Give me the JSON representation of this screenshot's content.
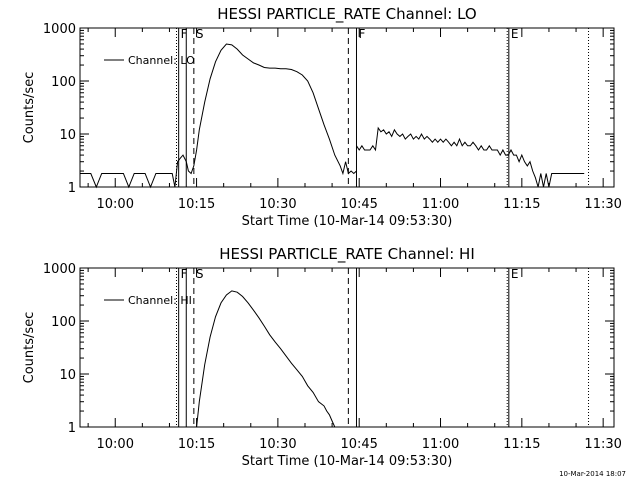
{
  "footer_timestamp": "10-Mar-2014 18:07",
  "chart_data": [
    {
      "type": "line",
      "title": "HESSI PARTICLE_RATE Channel: LO",
      "xlabel": "Start Time (10-Mar-14 09:53:30)",
      "ylabel": "Counts/sec",
      "x_unit": "minutes after 09:53:30",
      "xlim": [
        0,
        98.5
      ],
      "ylim": [
        1,
        1000
      ],
      "yscale": "log",
      "grid": false,
      "xticks": [
        {
          "x": 6.5,
          "label": "10:00"
        },
        {
          "x": 21.5,
          "label": "10:15"
        },
        {
          "x": 36.5,
          "label": "10:30"
        },
        {
          "x": 51.5,
          "label": "10:45"
        },
        {
          "x": 66.5,
          "label": "11:00"
        },
        {
          "x": 81.5,
          "label": "11:15"
        },
        {
          "x": 96.5,
          "label": "11:30"
        }
      ],
      "yticks": [
        {
          "y": 1,
          "label": "1"
        },
        {
          "y": 10,
          "label": "10"
        },
        {
          "y": 100,
          "label": "100"
        },
        {
          "y": 1000,
          "label": "1000"
        }
      ],
      "legend": {
        "label": "Channel: LO",
        "position": "top-left"
      },
      "markers": [
        {
          "x": 17.8,
          "style": "dotted",
          "label": ""
        },
        {
          "x": 18.2,
          "style": "solid",
          "label": "F"
        },
        {
          "x": 19.6,
          "style": "solid",
          "label": ""
        },
        {
          "x": 21.0,
          "style": "dashed",
          "label": "S"
        },
        {
          "x": 49.5,
          "style": "dashed",
          "label": ""
        },
        {
          "x": 51.0,
          "style": "solid",
          "label": "F"
        },
        {
          "x": 78.8,
          "style": "dotted",
          "label": ""
        },
        {
          "x": 79.1,
          "style": "solid",
          "label": "E"
        },
        {
          "x": 93.8,
          "style": "dotted",
          "label": ""
        }
      ],
      "series": [
        {
          "name": "Channel: LO",
          "x": [
            0,
            1,
            2,
            3,
            4,
            5,
            6,
            7,
            8,
            9,
            10,
            11,
            12,
            13,
            14,
            15,
            16,
            17,
            17.5,
            18,
            18.5,
            19,
            19.6,
            20,
            20.5,
            21,
            21.5,
            22,
            23,
            24,
            25,
            26,
            27,
            28,
            29,
            30,
            31,
            32,
            33,
            34,
            35,
            36,
            37,
            38,
            39,
            40,
            41,
            42,
            43,
            44,
            45,
            46,
            47,
            48,
            48.5,
            49,
            49.5,
            50,
            50.5,
            51
          ],
          "y": [
            1.8,
            1.8,
            1.8,
            1.0,
            1.8,
            1.8,
            1.8,
            1.8,
            1.8,
            1.0,
            1.8,
            1.8,
            1.8,
            1.0,
            1.8,
            1.8,
            1.8,
            1.8,
            1.0,
            3.0,
            3.5,
            4.0,
            3.0,
            2.0,
            1.8,
            2.5,
            5,
            12,
            40,
            110,
            230,
            380,
            500,
            480,
            400,
            310,
            260,
            220,
            200,
            180,
            175,
            175,
            170,
            170,
            165,
            150,
            130,
            100,
            60,
            30,
            15,
            8,
            4,
            2.5,
            1.8,
            3.0,
            1.8,
            2.0,
            1.8,
            2.0
          ]
        },
        {
          "name": "",
          "x": [
            51,
            51.5,
            52,
            52.5,
            53,
            53.5,
            54,
            54.5,
            55,
            55.5,
            56,
            56.5,
            57,
            57.5,
            58,
            58.5,
            59,
            59.5,
            60,
            60.5,
            61,
            61.5,
            62,
            62.5,
            63,
            63.5,
            64,
            64.5,
            65,
            65.5,
            66,
            66.5,
            67,
            67.5,
            68,
            68.5,
            69,
            69.5,
            70,
            70.5,
            71,
            71.5,
            72,
            72.5,
            73,
            73.5,
            74,
            74.5,
            75,
            75.5,
            76,
            76.5,
            77,
            77.5,
            78,
            78.5,
            79,
            79.5,
            80,
            80.5,
            81,
            81.5,
            82,
            82.5,
            83,
            83.5,
            84,
            84.5,
            85,
            85.5,
            86,
            86.5,
            87,
            87.5,
            88,
            88.5,
            89,
            89.5,
            90,
            90.5,
            91,
            91.5,
            92,
            92.5,
            93
          ],
          "y": [
            6,
            5,
            6,
            5,
            5,
            5,
            6,
            5,
            13,
            11,
            12,
            10,
            11,
            9,
            12,
            10,
            9,
            10,
            8,
            9,
            10,
            8,
            9,
            8,
            10,
            8,
            9,
            8,
            7,
            8,
            7,
            8,
            7,
            8,
            7,
            6,
            7,
            6,
            8,
            6,
            7,
            6,
            6,
            7,
            6,
            5,
            6,
            5,
            5,
            6,
            5,
            5,
            5,
            4,
            5,
            4,
            4,
            5,
            4,
            4,
            3,
            4,
            3,
            2.5,
            3,
            2,
            1.5,
            1,
            1.8,
            1,
            1.8,
            1,
            1.8,
            1.8,
            1.8,
            1.8,
            1.8,
            1.8,
            1.8,
            1.8,
            1.8,
            1.8,
            1.8,
            1.8,
            1.8
          ]
        }
      ]
    },
    {
      "type": "line",
      "title": "HESSI PARTICLE_RATE Channel: HI",
      "xlabel": "Start Time (10-Mar-14 09:53:30)",
      "ylabel": "Counts/sec",
      "x_unit": "minutes after 09:53:30",
      "xlim": [
        0,
        98.5
      ],
      "ylim": [
        1,
        1000
      ],
      "yscale": "log",
      "grid": false,
      "xticks": [
        {
          "x": 6.5,
          "label": "10:00"
        },
        {
          "x": 21.5,
          "label": "10:15"
        },
        {
          "x": 36.5,
          "label": "10:30"
        },
        {
          "x": 51.5,
          "label": "10:45"
        },
        {
          "x": 66.5,
          "label": "11:00"
        },
        {
          "x": 81.5,
          "label": "11:15"
        },
        {
          "x": 96.5,
          "label": "11:30"
        }
      ],
      "yticks": [
        {
          "y": 1,
          "label": "1"
        },
        {
          "y": 10,
          "label": "10"
        },
        {
          "y": 100,
          "label": "100"
        },
        {
          "y": 1000,
          "label": "1000"
        }
      ],
      "legend": {
        "label": "Channel: HI",
        "position": "top-left"
      },
      "markers": [
        {
          "x": 17.8,
          "style": "dotted",
          "label": ""
        },
        {
          "x": 18.2,
          "style": "solid",
          "label": "F"
        },
        {
          "x": 19.6,
          "style": "solid",
          "label": ""
        },
        {
          "x": 21.0,
          "style": "dashed",
          "label": "S"
        },
        {
          "x": 49.5,
          "style": "dashed",
          "label": ""
        },
        {
          "x": 51.0,
          "style": "solid",
          "label": ""
        },
        {
          "x": 78.8,
          "style": "dotted",
          "label": ""
        },
        {
          "x": 79.1,
          "style": "solid",
          "label": "E"
        },
        {
          "x": 93.8,
          "style": "dotted",
          "label": ""
        }
      ],
      "series": [
        {
          "name": "Channel: HI",
          "x": [
            21.5,
            22,
            23,
            24,
            25,
            26,
            27,
            28,
            29,
            30,
            31,
            32,
            33,
            34,
            35,
            36,
            37,
            38,
            39,
            40,
            41,
            42,
            43,
            44,
            45,
            45.5,
            46,
            46.5,
            47
          ],
          "y": [
            1.0,
            3,
            15,
            50,
            120,
            220,
            310,
            370,
            350,
            290,
            220,
            160,
            115,
            80,
            55,
            40,
            30,
            22,
            16,
            12,
            9,
            6,
            4.5,
            3,
            2.5,
            2,
            1.7,
            1.3,
            1.0
          ]
        }
      ]
    }
  ]
}
